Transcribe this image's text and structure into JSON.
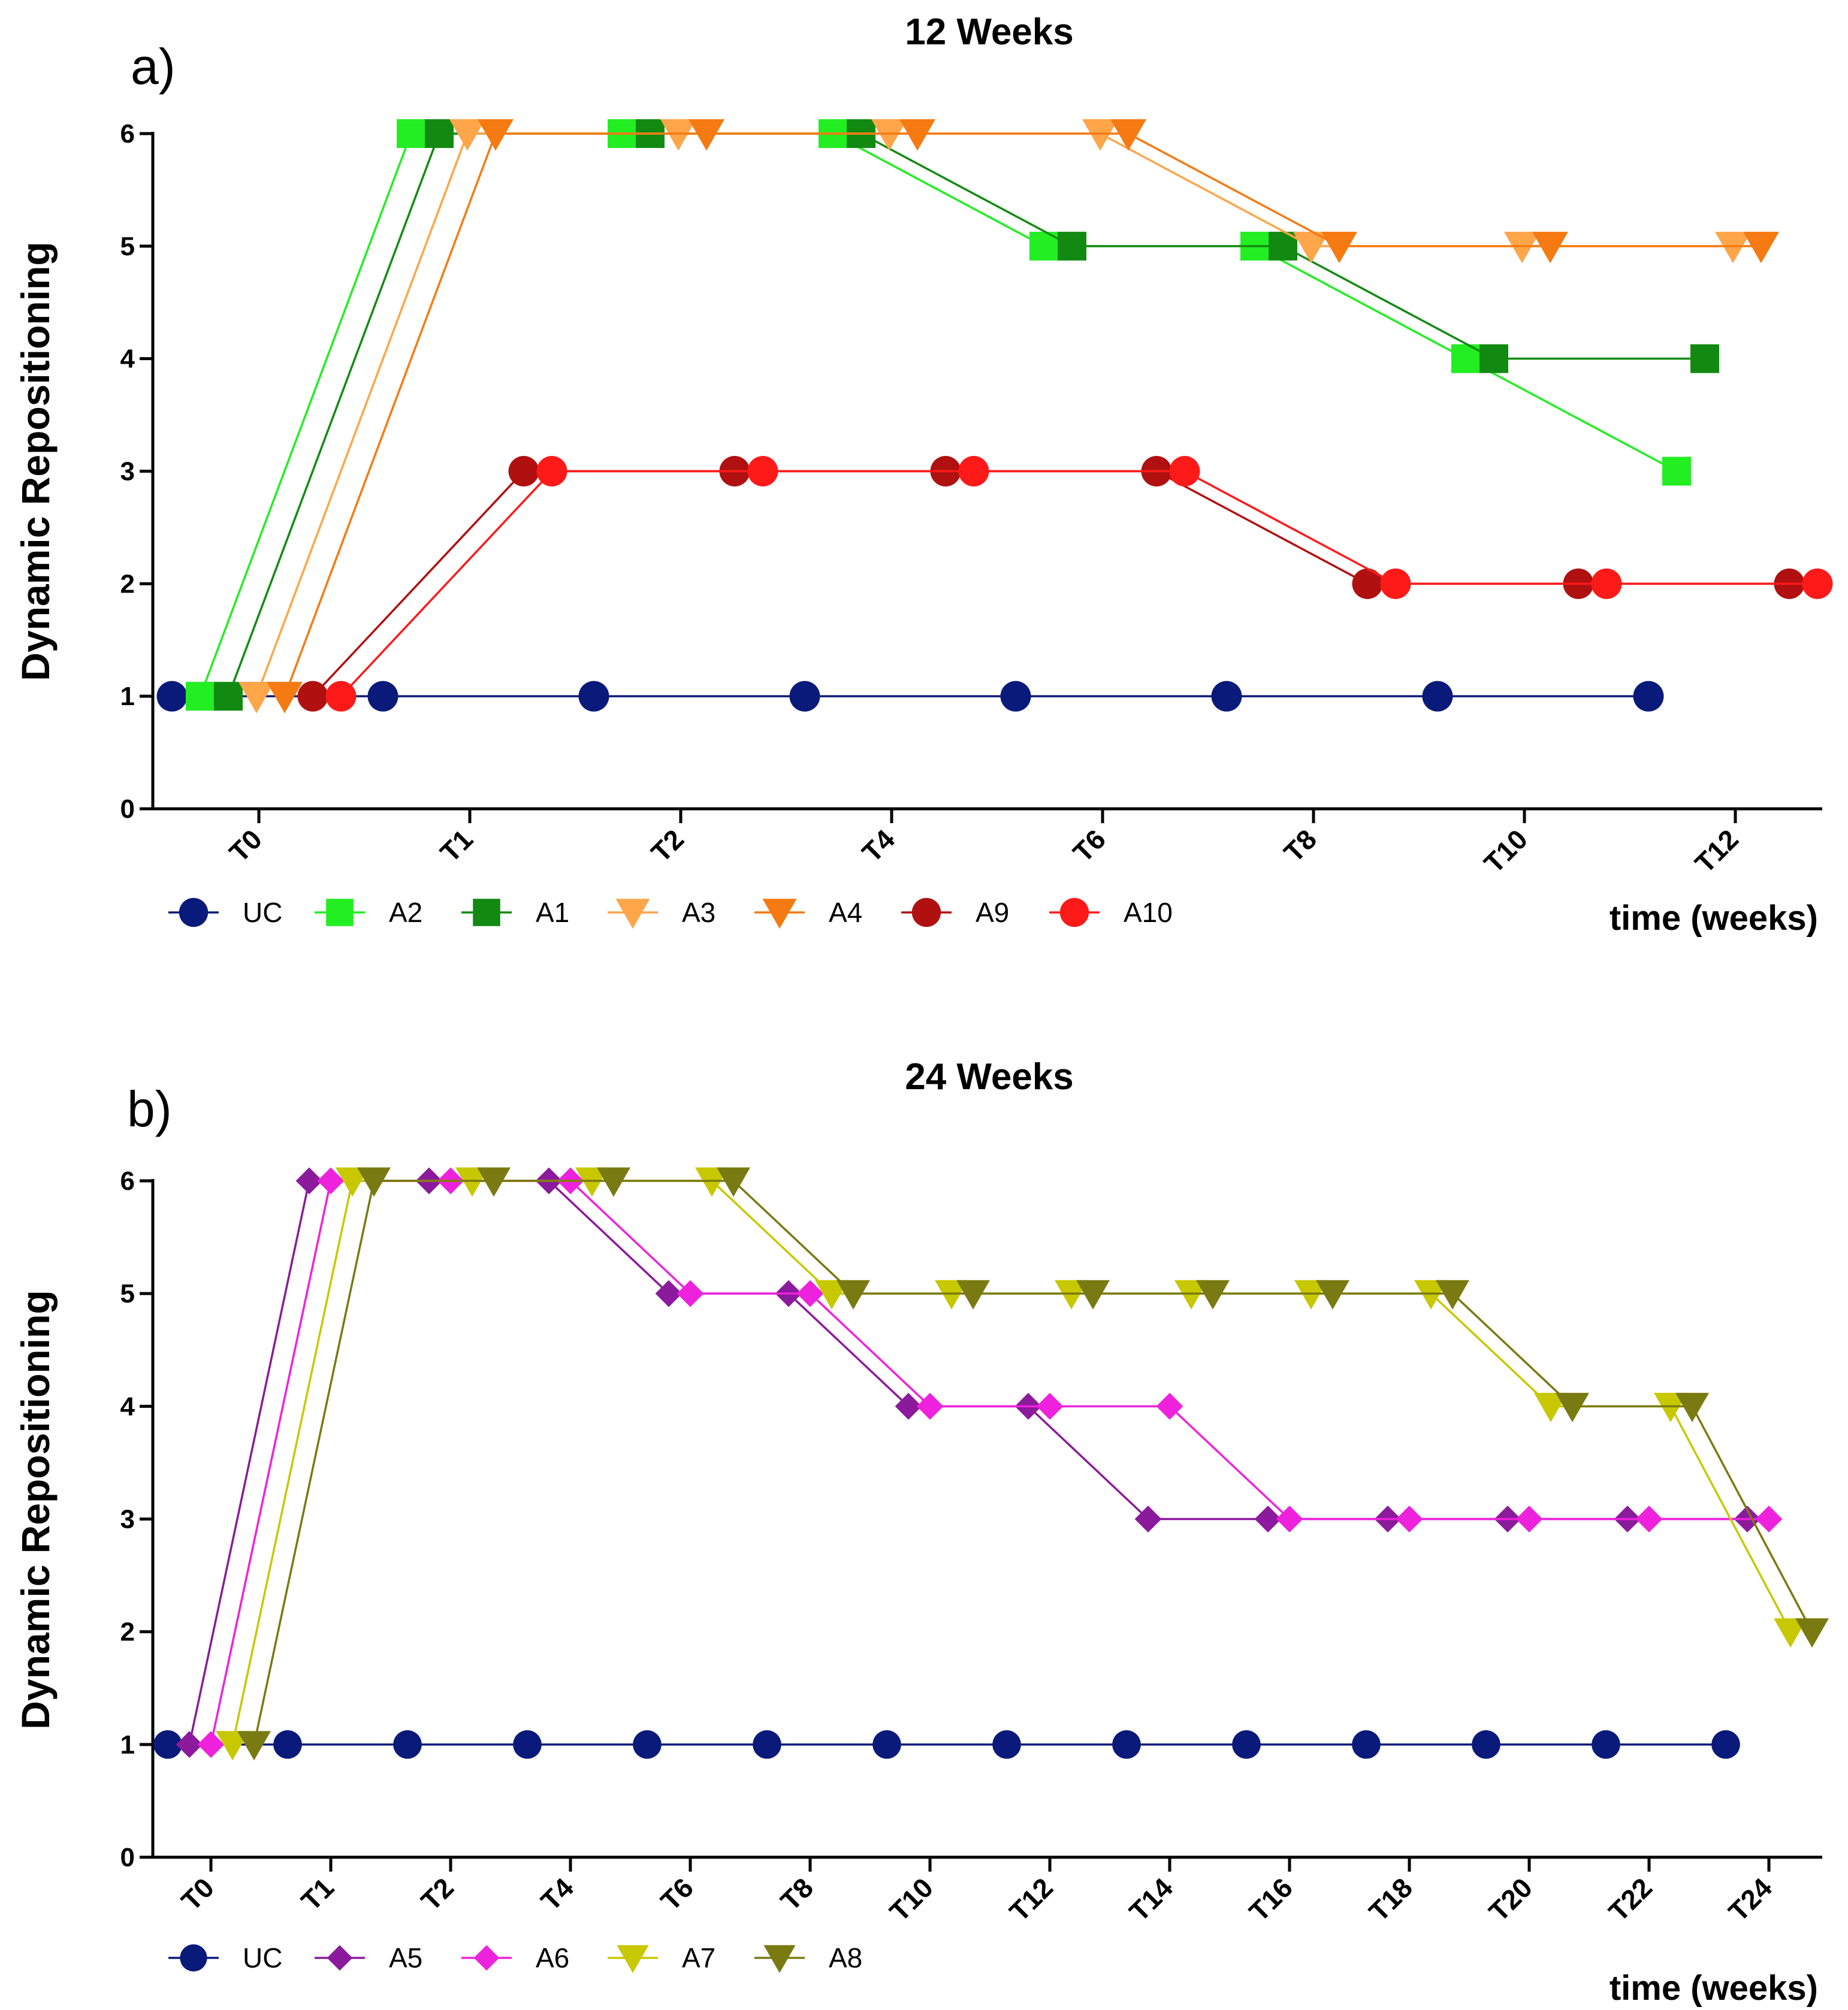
{
  "chart_data": [
    {
      "type": "line",
      "panel_letter": "a)",
      "title": "12 Weeks",
      "xlabel": "time (weeks)",
      "ylabel": "Dynamic Repositioning",
      "categories": [
        "T0",
        "T1",
        "T2",
        "T4",
        "T6",
        "T8",
        "T10",
        "T12"
      ],
      "yticks": [
        "0",
        "1",
        "2",
        "3",
        "4",
        "5",
        "6"
      ],
      "ylim": [
        0,
        6
      ],
      "grid": false,
      "legend_position": "bottom",
      "series": [
        {
          "name": "UC",
          "values": [
            1,
            1,
            1,
            1,
            1,
            1,
            1,
            1
          ],
          "color": "#0a1a7a",
          "marker": "circle"
        },
        {
          "name": "A2",
          "values": [
            1,
            6,
            6,
            6,
            5,
            5,
            4,
            3
          ],
          "color": "#22ee22",
          "marker": "square"
        },
        {
          "name": "A1",
          "values": [
            1,
            6,
            6,
            6,
            5,
            5,
            4,
            4
          ],
          "color": "#128a12",
          "marker": "square"
        },
        {
          "name": "A3",
          "values": [
            1,
            6,
            6,
            6,
            6,
            5,
            5,
            5
          ],
          "color": "#ffa54a",
          "marker": "triangle-down"
        },
        {
          "name": "A4",
          "values": [
            1,
            6,
            6,
            6,
            6,
            5,
            5,
            5
          ],
          "color": "#f57a12",
          "marker": "triangle-down"
        },
        {
          "name": "A9",
          "values": [
            1,
            3,
            3,
            3,
            3,
            2,
            2,
            2
          ],
          "color": "#b01010",
          "marker": "circle"
        },
        {
          "name": "A10",
          "values": [
            1,
            3,
            3,
            3,
            3,
            2,
            2,
            2
          ],
          "color": "#ff1a1a",
          "marker": "circle"
        }
      ]
    },
    {
      "type": "line",
      "panel_letter": "b)",
      "title": "24 Weeks",
      "xlabel": "time (weeks)",
      "ylabel": "Dynamic Repositioning",
      "categories": [
        "T0",
        "T1",
        "T2",
        "T4",
        "T6",
        "T8",
        "T10",
        "T12",
        "T14",
        "T16",
        "T18",
        "T20",
        "T22",
        "T24"
      ],
      "yticks": [
        "0",
        "1",
        "2",
        "3",
        "4",
        "5",
        "6"
      ],
      "ylim": [
        0,
        6
      ],
      "grid": false,
      "legend_position": "bottom",
      "series": [
        {
          "name": "UC",
          "values": [
            1,
            1,
            1,
            1,
            1,
            1,
            1,
            1,
            1,
            1,
            1,
            1,
            1,
            1
          ],
          "color": "#0a1a7a",
          "marker": "circle"
        },
        {
          "name": "A5",
          "values": [
            1,
            6,
            6,
            6,
            5,
            5,
            4,
            4,
            3,
            3,
            3,
            3,
            3,
            3
          ],
          "color": "#8b1a9c",
          "marker": "diamond"
        },
        {
          "name": "A6",
          "values": [
            1,
            6,
            6,
            6,
            5,
            5,
            4,
            4,
            4,
            3,
            3,
            3,
            3,
            3
          ],
          "color": "#ee22dd",
          "marker": "diamond"
        },
        {
          "name": "A7",
          "values": [
            1,
            6,
            6,
            6,
            6,
            5,
            5,
            5,
            5,
            5,
            5,
            4,
            4,
            2
          ],
          "color": "#c8c800",
          "marker": "triangle-down"
        },
        {
          "name": "A8",
          "values": [
            1,
            6,
            6,
            6,
            6,
            5,
            5,
            5,
            5,
            5,
            5,
            4,
            4,
            2
          ],
          "color": "#7a7a12",
          "marker": "triangle-down"
        }
      ]
    }
  ]
}
